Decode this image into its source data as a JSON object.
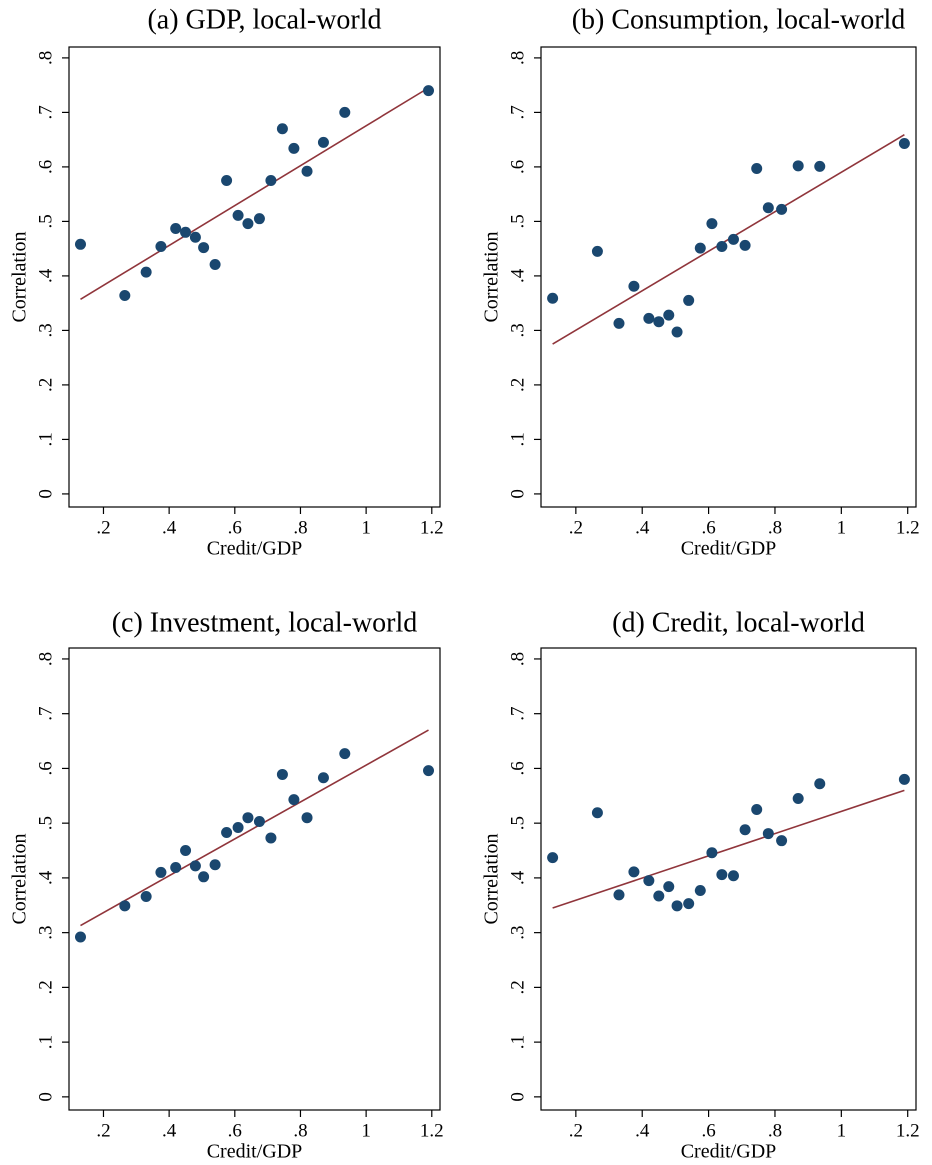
{
  "chart_data": [
    {
      "type": "scatter",
      "title": "(a) GDP, local-world",
      "x_label": "Credit/GDP",
      "y_label": "Correlation",
      "x": [
        0.13,
        0.265,
        0.33,
        0.375,
        0.42,
        0.45,
        0.48,
        0.505,
        0.54,
        0.575,
        0.61,
        0.64,
        0.675,
        0.71,
        0.745,
        0.78,
        0.82,
        0.87,
        0.935,
        1.19
      ],
      "series": [
        {
          "color": "#1a476f",
          "values": [
            0.458,
            0.364,
            0.407,
            0.454,
            0.487,
            0.48,
            0.471,
            0.452,
            0.421,
            0.575,
            0.511,
            0.496,
            0.505,
            0.575,
            0.67,
            0.634,
            0.592,
            0.645,
            0.7,
            0.74
          ]
        }
      ],
      "fit": {
        "x": [
          0.13,
          1.19
        ],
        "values": [
          0.357,
          0.745
        ],
        "color": "#90353b"
      },
      "xlim": [
        0.095,
        1.225
      ],
      "ylim": [
        -0.024,
        0.82
      ],
      "xticks": [
        {
          "value": 0.2,
          "label": ".2"
        },
        {
          "value": 0.4,
          "label": ".4"
        },
        {
          "value": 0.6,
          "label": ".6"
        },
        {
          "value": 0.8,
          "label": ".8"
        },
        1,
        1.2
      ],
      "yticks": [
        0,
        {
          "value": 0.1,
          "label": ".1"
        },
        {
          "value": 0.2,
          "label": ".2"
        },
        {
          "value": 0.3,
          "label": ".3"
        },
        {
          "value": 0.4,
          "label": ".4"
        },
        {
          "value": 0.5,
          "label": ".5"
        },
        {
          "value": 0.6,
          "label": ".6"
        },
        {
          "value": 0.7,
          "label": ".7"
        },
        {
          "value": 0.8,
          "label": ".8"
        }
      ]
    },
    {
      "type": "scatter",
      "title": "(b) Consumption, local-world",
      "x_label": "Credit/GDP",
      "y_label": "Correlation",
      "x": [
        0.13,
        0.265,
        0.33,
        0.375,
        0.42,
        0.45,
        0.48,
        0.505,
        0.54,
        0.575,
        0.61,
        0.64,
        0.675,
        0.71,
        0.745,
        0.78,
        0.82,
        0.87,
        0.935,
        1.19
      ],
      "series": [
        {
          "color": "#1a476f",
          "values": [
            0.359,
            0.445,
            0.313,
            0.381,
            0.322,
            0.316,
            0.328,
            0.297,
            0.355,
            0.451,
            0.496,
            0.454,
            0.467,
            0.456,
            0.597,
            0.525,
            0.522,
            0.602,
            0.601,
            0.643
          ]
        }
      ],
      "fit": {
        "x": [
          0.13,
          1.19
        ],
        "values": [
          0.275,
          0.659
        ],
        "color": "#90353b"
      },
      "xlim": [
        0.095,
        1.225
      ],
      "ylim": [
        -0.024,
        0.82
      ],
      "xticks": [
        {
          "value": 0.2,
          "label": ".2"
        },
        {
          "value": 0.4,
          "label": ".4"
        },
        {
          "value": 0.6,
          "label": ".6"
        },
        {
          "value": 0.8,
          "label": ".8"
        },
        1,
        1.2
      ],
      "yticks": [
        0,
        {
          "value": 0.1,
          "label": ".1"
        },
        {
          "value": 0.2,
          "label": ".2"
        },
        {
          "value": 0.3,
          "label": ".3"
        },
        {
          "value": 0.4,
          "label": ".4"
        },
        {
          "value": 0.5,
          "label": ".5"
        },
        {
          "value": 0.6,
          "label": ".6"
        },
        {
          "value": 0.7,
          "label": ".7"
        },
        {
          "value": 0.8,
          "label": ".8"
        }
      ]
    },
    {
      "type": "scatter",
      "title": "(c) Investment, local-world",
      "x_label": "Credit/GDP",
      "y_label": "Correlation",
      "x": [
        0.13,
        0.265,
        0.33,
        0.375,
        0.42,
        0.45,
        0.48,
        0.505,
        0.54,
        0.575,
        0.61,
        0.64,
        0.675,
        0.71,
        0.745,
        0.78,
        0.82,
        0.87,
        0.935,
        1.19
      ],
      "series": [
        {
          "color": "#1a476f",
          "values": [
            0.292,
            0.349,
            0.366,
            0.41,
            0.419,
            0.45,
            0.422,
            0.402,
            0.424,
            0.483,
            0.492,
            0.51,
            0.503,
            0.473,
            0.589,
            0.543,
            0.51,
            0.583,
            0.627,
            0.596
          ]
        }
      ],
      "fit": {
        "x": [
          0.13,
          1.19
        ],
        "values": [
          0.313,
          0.67
        ],
        "color": "#90353b"
      },
      "xlim": [
        0.095,
        1.225
      ],
      "ylim": [
        -0.024,
        0.82
      ],
      "xticks": [
        {
          "value": 0.2,
          "label": ".2"
        },
        {
          "value": 0.4,
          "label": ".4"
        },
        {
          "value": 0.6,
          "label": ".6"
        },
        {
          "value": 0.8,
          "label": ".8"
        },
        1,
        1.2
      ],
      "yticks": [
        0,
        {
          "value": 0.1,
          "label": ".1"
        },
        {
          "value": 0.2,
          "label": ".2"
        },
        {
          "value": 0.3,
          "label": ".3"
        },
        {
          "value": 0.4,
          "label": ".4"
        },
        {
          "value": 0.5,
          "label": ".5"
        },
        {
          "value": 0.6,
          "label": ".6"
        },
        {
          "value": 0.7,
          "label": ".7"
        },
        {
          "value": 0.8,
          "label": ".8"
        }
      ]
    },
    {
      "type": "scatter",
      "title": "(d) Credit, local-world",
      "x_label": "Credit/GDP",
      "y_label": "Correlation",
      "x": [
        0.13,
        0.265,
        0.33,
        0.375,
        0.42,
        0.45,
        0.48,
        0.505,
        0.54,
        0.575,
        0.61,
        0.64,
        0.675,
        0.71,
        0.745,
        0.78,
        0.82,
        0.87,
        0.935,
        1.19
      ],
      "series": [
        {
          "color": "#1a476f",
          "values": [
            0.437,
            0.519,
            0.369,
            0.411,
            0.395,
            0.367,
            0.384,
            0.349,
            0.353,
            0.377,
            0.446,
            0.406,
            0.404,
            0.488,
            0.525,
            0.481,
            0.468,
            0.545,
            0.572,
            0.58
          ]
        }
      ],
      "fit": {
        "x": [
          0.13,
          1.19
        ],
        "values": [
          0.345,
          0.56
        ],
        "color": "#90353b"
      },
      "xlim": [
        0.095,
        1.225
      ],
      "ylim": [
        -0.024,
        0.82
      ],
      "xticks": [
        {
          "value": 0.2,
          "label": ".2"
        },
        {
          "value": 0.4,
          "label": ".4"
        },
        {
          "value": 0.6,
          "label": ".6"
        },
        {
          "value": 0.8,
          "label": ".8"
        },
        1,
        1.2
      ],
      "yticks": [
        0,
        {
          "value": 0.1,
          "label": ".1"
        },
        {
          "value": 0.2,
          "label": ".2"
        },
        {
          "value": 0.3,
          "label": ".3"
        },
        {
          "value": 0.4,
          "label": ".4"
        },
        {
          "value": 0.5,
          "label": ".5"
        },
        {
          "value": 0.6,
          "label": ".6"
        },
        {
          "value": 0.7,
          "label": ".7"
        },
        {
          "value": 0.8,
          "label": ".8"
        }
      ]
    }
  ]
}
